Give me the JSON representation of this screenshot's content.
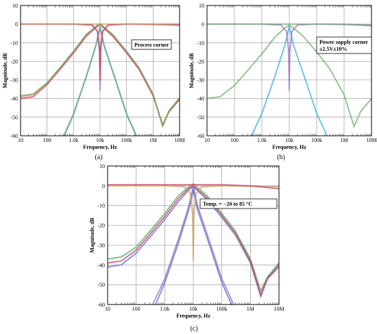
{
  "chart_data": [
    {
      "id": "a",
      "type": "line",
      "caption": "(a)",
      "annotation": [
        "Process corner"
      ],
      "xlabel": "Frequency, Hz",
      "ylabel": "Magnitude, dB",
      "xscale": "log",
      "xlim": [
        10,
        10000000
      ],
      "ylim": [
        -60,
        10
      ],
      "x_ticks": [
        "10",
        "100",
        "1.0k",
        "10k",
        "100k",
        "1M",
        "10M"
      ],
      "y_ticks": [
        "10",
        "0",
        "-10",
        "-20",
        "-30",
        "-40",
        "-50",
        "-60"
      ],
      "grid": true,
      "series": [
        {
          "color": "#c8a060",
          "points": [
            [
              10,
              -39
            ],
            [
              30,
              -38
            ],
            [
              100,
              -32
            ],
            [
              300,
              -24
            ],
            [
              1000,
              -15
            ],
            [
              3000,
              -6
            ],
            [
              7000,
              -1.5
            ],
            [
              10000,
              0
            ],
            [
              30000,
              -6
            ],
            [
              100000,
              -15
            ],
            [
              300000,
              -24
            ],
            [
              1000000,
              -38
            ],
            [
              2300000,
              -55
            ],
            [
              4000000,
              -47
            ],
            [
              10000000,
              -40
            ]
          ]
        },
        {
          "color": "#d04060",
          "points": [
            [
              10,
              -40
            ],
            [
              30,
              -39
            ],
            [
              100,
              -32.5
            ],
            [
              300,
              -24.5
            ],
            [
              1000,
              -15.5
            ],
            [
              3000,
              -6.5
            ],
            [
              7000,
              -1.8
            ],
            [
              10000,
              -0.2
            ],
            [
              30000,
              -6.5
            ],
            [
              100000,
              -15.5
            ],
            [
              300000,
              -24.5
            ],
            [
              1000000,
              -38.5
            ],
            [
              2300000,
              -54
            ],
            [
              4000000,
              -47
            ],
            [
              10000000,
              -40.5
            ]
          ]
        },
        {
          "color": "#70b070",
          "points": [
            [
              10,
              -38.5
            ],
            [
              30,
              -37.5
            ],
            [
              100,
              -31.5
            ],
            [
              300,
              -23.5
            ],
            [
              1000,
              -14.5
            ],
            [
              3000,
              -5.5
            ],
            [
              7000,
              -1.2
            ],
            [
              10000,
              0.3
            ],
            [
              30000,
              -5.5
            ],
            [
              100000,
              -14.5
            ],
            [
              300000,
              -23.5
            ],
            [
              1000000,
              -37.5
            ],
            [
              2300000,
              -54.5
            ],
            [
              4000000,
              -46.5
            ],
            [
              10000000,
              -39.5
            ]
          ]
        },
        {
          "color": "#c8a060",
          "points": [
            [
              420,
              -60
            ],
            [
              1000,
              -48
            ],
            [
              3000,
              -28
            ],
            [
              7000,
              -11
            ],
            [
              10000,
              -1
            ],
            [
              14000,
              -11
            ],
            [
              35000,
              -28
            ],
            [
              100000,
              -48
            ],
            [
              240000,
              -60
            ]
          ]
        },
        {
          "color": "#40b0b0",
          "points": [
            [
              450,
              -60
            ],
            [
              1000,
              -48.5
            ],
            [
              3000,
              -28.5
            ],
            [
              7000,
              -11.5
            ],
            [
              10000,
              -1.5
            ],
            [
              14000,
              -11.5
            ],
            [
              35000,
              -28.5
            ],
            [
              100000,
              -48.5
            ],
            [
              230000,
              -60
            ]
          ]
        },
        {
          "color": "#a070c0",
          "points": [
            [
              10,
              0
            ],
            [
              1000,
              0
            ],
            [
              5000,
              -0.5
            ],
            [
              8000,
              -4
            ],
            [
              9500,
              -15
            ],
            [
              10000,
              -36
            ],
            [
              10500,
              -15
            ],
            [
              12500,
              -4
            ],
            [
              20000,
              -0.5
            ],
            [
              100000,
              0
            ],
            [
              10000000,
              0
            ]
          ]
        },
        {
          "color": "#d04060",
          "points": [
            [
              10,
              0
            ],
            [
              1000,
              0
            ],
            [
              5000,
              -0.5
            ],
            [
              8000,
              -4
            ],
            [
              9500,
              -13
            ],
            [
              10000,
              -30
            ],
            [
              10500,
              -13
            ],
            [
              12500,
              -4
            ],
            [
              20000,
              -0.5
            ],
            [
              100000,
              0
            ],
            [
              10000000,
              -0.5
            ]
          ]
        },
        {
          "color": "#c8a060",
          "points": [
            [
              10,
              0
            ],
            [
              100000,
              0
            ],
            [
              1000000,
              0
            ],
            [
              10000000,
              -0.8
            ]
          ]
        }
      ]
    },
    {
      "id": "b",
      "type": "line",
      "caption": "(b)",
      "annotation": [
        "Power supply corner",
        "±2.5V±10%"
      ],
      "xlabel": "Frequency, Hz",
      "ylabel": "Magnitude, dB",
      "xscale": "log",
      "xlim": [
        10,
        10000000
      ],
      "ylim": [
        -60,
        10
      ],
      "x_ticks": [
        "10",
        "100",
        "1.0k",
        "10k",
        "100k",
        "1M",
        "10M"
      ],
      "y_ticks": [
        "10",
        "0",
        "-10",
        "-20",
        "-30",
        "-40",
        "-50",
        "-60"
      ],
      "grid": true,
      "series": [
        {
          "color": "#70b070",
          "points": [
            [
              10,
              -40
            ],
            [
              30,
              -39
            ],
            [
              100,
              -33
            ],
            [
              300,
              -25
            ],
            [
              1000,
              -16
            ],
            [
              3000,
              -7
            ],
            [
              7000,
              -2
            ],
            [
              10000,
              -0.5
            ],
            [
              30000,
              -6
            ],
            [
              100000,
              -15
            ],
            [
              300000,
              -24
            ],
            [
              1000000,
              -38
            ],
            [
              2300000,
              -55
            ],
            [
              4000000,
              -47
            ],
            [
              10000000,
              -40
            ]
          ]
        },
        {
          "color": "#40b0e0",
          "points": [
            [
              420,
              -60
            ],
            [
              1000,
              -48
            ],
            [
              3000,
              -28
            ],
            [
              7000,
              -11
            ],
            [
              10000,
              -1
            ],
            [
              14000,
              -11
            ],
            [
              35000,
              -28
            ],
            [
              100000,
              -48
            ],
            [
              240000,
              -60
            ]
          ]
        },
        {
          "color": "#a070c0",
          "points": [
            [
              10,
              0
            ],
            [
              1000,
              0
            ],
            [
              5000,
              -0.5
            ],
            [
              8000,
              -4
            ],
            [
              9500,
              -15
            ],
            [
              10000,
              -36
            ],
            [
              10500,
              -15
            ],
            [
              12500,
              -4
            ],
            [
              20000,
              -0.5
            ],
            [
              100000,
              0
            ],
            [
              10000000,
              -0.5
            ]
          ]
        },
        {
          "color": "#70b070",
          "points": [
            [
              10,
              0
            ],
            [
              100000,
              0
            ],
            [
              1000000,
              0
            ],
            [
              10000000,
              -1
            ]
          ]
        }
      ]
    },
    {
      "id": "c",
      "type": "line",
      "caption": "(c)",
      "annotation": [
        "Temp. = −20 to 85 °C"
      ],
      "xlabel": "Frequency, Hz",
      "ylabel": "Magnitude, dB",
      "xscale": "log",
      "xlim": [
        10,
        10000000
      ],
      "ylim": [
        -60,
        10
      ],
      "x_ticks": [
        "10",
        "100",
        "1.0k",
        "10k",
        "100k",
        "1M",
        "10M"
      ],
      "y_ticks": [
        "10",
        "0",
        "-10",
        "-20",
        "-30",
        "-40",
        "-50",
        "-60"
      ],
      "grid": true,
      "series": [
        {
          "color": "#6070d0",
          "points": [
            [
              10,
              -41
            ],
            [
              30,
              -40
            ],
            [
              100,
              -34
            ],
            [
              300,
              -26
            ],
            [
              1000,
              -17
            ],
            [
              3000,
              -8
            ],
            [
              7000,
              -2
            ],
            [
              10000,
              -0.5
            ],
            [
              30000,
              -7
            ],
            [
              100000,
              -16
            ],
            [
              300000,
              -25
            ],
            [
              1000000,
              -39
            ],
            [
              2300000,
              -56
            ],
            [
              4000000,
              -47
            ],
            [
              10000000,
              -41
            ]
          ]
        },
        {
          "color": "#50b060",
          "points": [
            [
              10,
              -37
            ],
            [
              30,
              -36
            ],
            [
              100,
              -31
            ],
            [
              300,
              -23
            ],
            [
              1000,
              -14
            ],
            [
              3000,
              -5
            ],
            [
              7000,
              -0.5
            ],
            [
              10000,
              1
            ],
            [
              30000,
              -5
            ],
            [
              100000,
              -14
            ],
            [
              300000,
              -23
            ],
            [
              1000000,
              -37
            ],
            [
              2300000,
              -53
            ],
            [
              4000000,
              -46
            ],
            [
              10000000,
              -39
            ]
          ]
        },
        {
          "color": "#d04060",
          "points": [
            [
              10,
              -39
            ],
            [
              30,
              -38
            ],
            [
              100,
              -32.5
            ],
            [
              300,
              -24.5
            ],
            [
              1000,
              -15.5
            ],
            [
              3000,
              -6.5
            ],
            [
              7000,
              -1.2
            ],
            [
              10000,
              0
            ],
            [
              30000,
              -6
            ],
            [
              100000,
              -15
            ],
            [
              300000,
              -24
            ],
            [
              1000000,
              -38
            ],
            [
              2300000,
              -55
            ],
            [
              4000000,
              -46.5
            ],
            [
              10000000,
              -40
            ]
          ]
        },
        {
          "color": "#a070c0",
          "points": [
            [
              380,
              -60
            ],
            [
              1000,
              -47
            ],
            [
              3000,
              -27
            ],
            [
              7000,
              -10
            ],
            [
              10000,
              0
            ],
            [
              14000,
              -10
            ],
            [
              35000,
              -27
            ],
            [
              100000,
              -47
            ],
            [
              260000,
              -60
            ]
          ]
        },
        {
          "color": "#6070d0",
          "points": [
            [
              480,
              -60
            ],
            [
              1000,
              -49
            ],
            [
              3000,
              -29
            ],
            [
              7000,
              -12
            ],
            [
              10000,
              -2
            ],
            [
              14000,
              -12
            ],
            [
              35000,
              -29
            ],
            [
              100000,
              -49
            ],
            [
              220000,
              -60
            ]
          ]
        },
        {
          "color": "#c8a060",
          "points": [
            [
              10,
              0
            ],
            [
              1000,
              0
            ],
            [
              5000,
              -0.5
            ],
            [
              8000,
              -4
            ],
            [
              9500,
              -15
            ],
            [
              10000,
              -38
            ],
            [
              10500,
              -15
            ],
            [
              12500,
              -4
            ],
            [
              20000,
              -0.5
            ],
            [
              100000,
              0
            ],
            [
              10000000,
              -0.5
            ]
          ]
        },
        {
          "color": "#d04060",
          "points": [
            [
              10,
              0.5
            ],
            [
              100000,
              0.5
            ],
            [
              1000000,
              0
            ],
            [
              10000000,
              -1.5
            ]
          ]
        }
      ]
    }
  ]
}
